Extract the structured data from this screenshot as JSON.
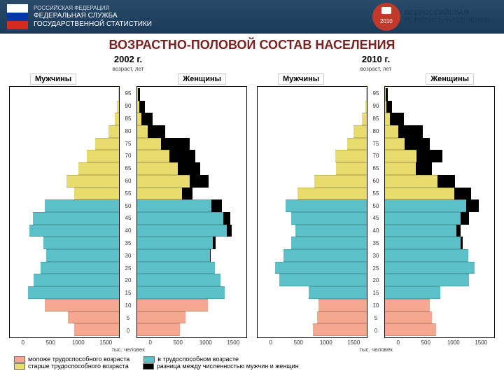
{
  "header": {
    "small": "РОССИЙСКАЯ ФЕДЕРАЦИЯ",
    "line1": "ФЕДЕРАЛЬНАЯ СЛУЖБА",
    "line2": "ГОСУДАРСТВЕННОЙ СТАТИСТИКИ",
    "flag_colors": [
      "#ffffff",
      "#0039a6",
      "#d52b1e"
    ],
    "logo_year": "2010",
    "logo_text1": "ВСЕРОССИЙСКАЯ",
    "logo_text2": "ПЕРЕПИСЬ НАСЕЛЕНИЯ"
  },
  "title": "ВОЗРАСТНО-ПОЛОВОЙ СОСТАВ НАСЕЛЕНИЯ",
  "labels": {
    "men": "Мужчины",
    "women": "Женщины",
    "age_axis": "возраст, лет",
    "x_axis": "тыс. человек"
  },
  "legend": {
    "young": "моложе трудоспособного возраста",
    "working": "в трудоспособном возрасте",
    "older": "старше трудоспособного возраста",
    "diff": "разница между численностью мужчин и женщин"
  },
  "colors": {
    "young": "#f5a78f",
    "working": "#5bc0c8",
    "older": "#e8dc6f",
    "diff": "#000000",
    "grid": "#d0d0d0",
    "title_color": "#7a2020"
  },
  "xmax": 1500,
  "xticks": [
    1500,
    1000,
    500,
    0
  ],
  "ages": [
    0,
    5,
    10,
    15,
    20,
    25,
    30,
    35,
    40,
    45,
    50,
    55,
    60,
    65,
    70,
    75,
    80,
    85,
    90,
    95
  ],
  "charts": [
    {
      "year": "2002 г.",
      "bars": [
        {
          "age": 0,
          "m": 620,
          "f": 590,
          "cat": "young"
        },
        {
          "age": 5,
          "m": 700,
          "f": 660,
          "cat": "young"
        },
        {
          "age": 10,
          "m": 1020,
          "f": 970,
          "cat": "young"
        },
        {
          "age": 15,
          "m": 1250,
          "f": 1200,
          "cat": "working"
        },
        {
          "age": 20,
          "m": 1170,
          "f": 1140,
          "cat": "working"
        },
        {
          "age": 25,
          "m": 1080,
          "f": 1070,
          "cat": "working"
        },
        {
          "age": 30,
          "m": 1000,
          "f": 1010,
          "cat": "working"
        },
        {
          "age": 35,
          "m": 1040,
          "f": 1080,
          "cat": "working"
        },
        {
          "age": 40,
          "m": 1230,
          "f": 1300,
          "cat": "working"
        },
        {
          "age": 45,
          "m": 1180,
          "f": 1280,
          "cat": "working"
        },
        {
          "age": 50,
          "m": 1020,
          "f": 1160,
          "cat": "working"
        },
        {
          "age": 55,
          "m": 620,
          "f": 760,
          "cat": "older"
        },
        {
          "age": 60,
          "m": 720,
          "f": 980,
          "cat": "older"
        },
        {
          "age": 65,
          "m": 560,
          "f": 870,
          "cat": "older"
        },
        {
          "age": 70,
          "m": 440,
          "f": 800,
          "cat": "older"
        },
        {
          "age": 75,
          "m": 330,
          "f": 720,
          "cat": "older"
        },
        {
          "age": 80,
          "m": 140,
          "f": 380,
          "cat": "older"
        },
        {
          "age": 85,
          "m": 60,
          "f": 210,
          "cat": "older"
        },
        {
          "age": 90,
          "m": 25,
          "f": 110,
          "cat": "older"
        },
        {
          "age": 95,
          "m": 10,
          "f": 40,
          "cat": "older"
        }
      ]
    },
    {
      "year": "2010 г.",
      "bars": [
        {
          "age": 0,
          "m": 740,
          "f": 700,
          "cat": "young"
        },
        {
          "age": 5,
          "m": 680,
          "f": 640,
          "cat": "young"
        },
        {
          "age": 10,
          "m": 660,
          "f": 620,
          "cat": "young"
        },
        {
          "age": 15,
          "m": 800,
          "f": 760,
          "cat": "working"
        },
        {
          "age": 20,
          "m": 1200,
          "f": 1150,
          "cat": "working"
        },
        {
          "age": 25,
          "m": 1260,
          "f": 1230,
          "cat": "working"
        },
        {
          "age": 30,
          "m": 1140,
          "f": 1140,
          "cat": "working"
        },
        {
          "age": 35,
          "m": 1040,
          "f": 1070,
          "cat": "working"
        },
        {
          "age": 40,
          "m": 980,
          "f": 1040,
          "cat": "working"
        },
        {
          "age": 45,
          "m": 1040,
          "f": 1150,
          "cat": "working"
        },
        {
          "age": 50,
          "m": 1120,
          "f": 1290,
          "cat": "working"
        },
        {
          "age": 55,
          "m": 950,
          "f": 1180,
          "cat": "older"
        },
        {
          "age": 60,
          "m": 720,
          "f": 960,
          "cat": "older"
        },
        {
          "age": 65,
          "m": 420,
          "f": 640,
          "cat": "older"
        },
        {
          "age": 70,
          "m": 430,
          "f": 790,
          "cat": "older"
        },
        {
          "age": 75,
          "m": 270,
          "f": 620,
          "cat": "older"
        },
        {
          "age": 80,
          "m": 180,
          "f": 520,
          "cat": "older"
        },
        {
          "age": 85,
          "m": 70,
          "f": 260,
          "cat": "older"
        },
        {
          "age": 90,
          "m": 20,
          "f": 100,
          "cat": "older"
        },
        {
          "age": 95,
          "m": 8,
          "f": 35,
          "cat": "older"
        }
      ]
    }
  ]
}
